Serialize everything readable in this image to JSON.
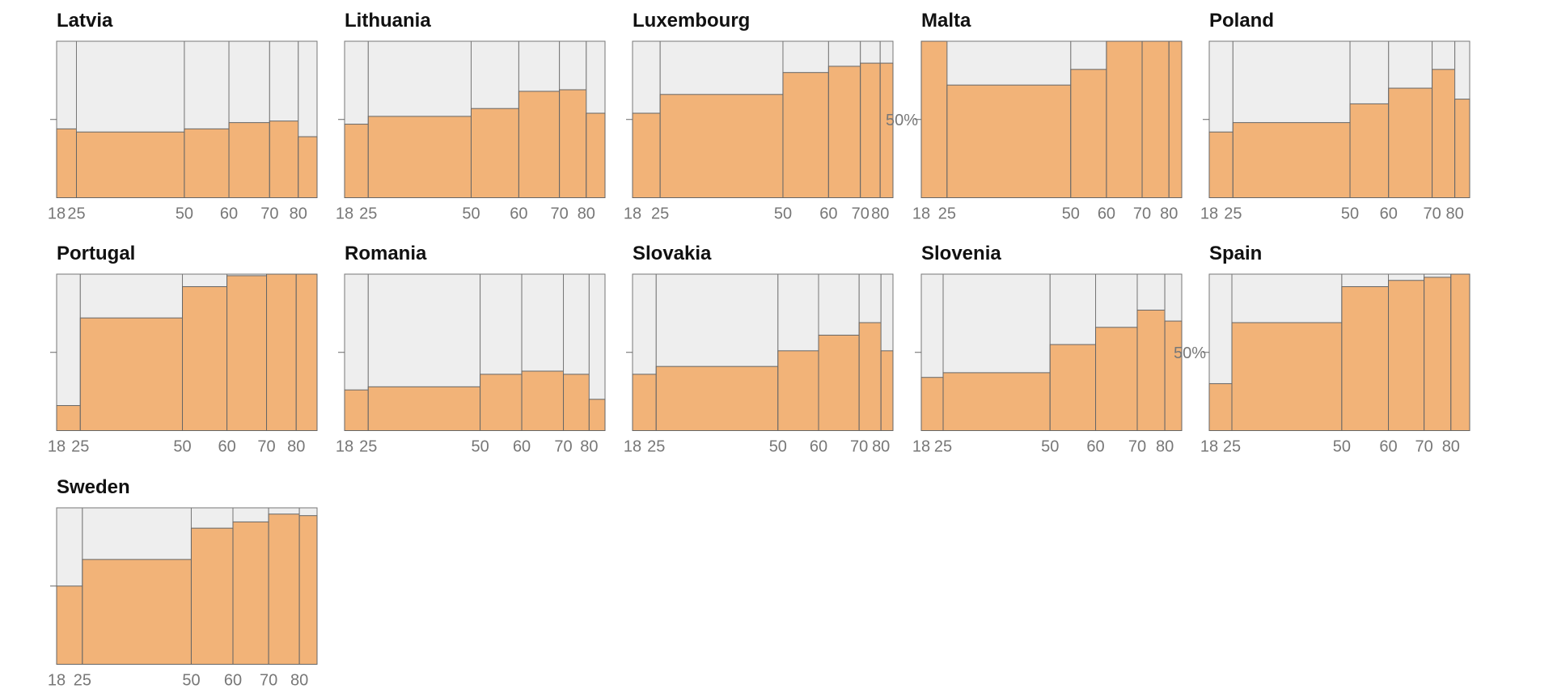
{
  "chart_data": [
    {
      "type": "mekko",
      "title": "Latvia",
      "categories": [
        18,
        25,
        50,
        60,
        70,
        80
      ],
      "widths": [
        7.6,
        41.4,
        17.1,
        15.6,
        11.0,
        7.2
      ],
      "values": [
        44,
        42,
        44,
        48,
        49,
        39
      ],
      "ylim": [
        0,
        100
      ],
      "yticks": [
        {
          "value": 50
        }
      ],
      "color": "#f2b378"
    },
    {
      "type": "mekko",
      "title": "Lithuania",
      "categories": [
        18,
        25,
        50,
        60,
        70,
        80
      ],
      "widths": [
        9.1,
        39.5,
        18.3,
        15.6,
        10.3,
        7.2
      ],
      "values": [
        47,
        52,
        57,
        68,
        69,
        54
      ],
      "ylim": [
        0,
        100
      ],
      "yticks": [
        {
          "value": 50
        }
      ],
      "color": "#f2b378"
    },
    {
      "type": "mekko",
      "title": "Luxembourg",
      "categories": [
        18,
        25,
        50,
        60,
        70,
        80
      ],
      "widths": [
        10.6,
        47.1,
        17.5,
        12.2,
        7.6,
        4.9
      ],
      "values": [
        54,
        66,
        80,
        84,
        86,
        86
      ],
      "ylim": [
        0,
        100
      ],
      "yticks": [
        {
          "value": 50
        }
      ],
      "color": "#f2b378"
    },
    {
      "type": "mekko",
      "title": "Malta",
      "categories": [
        18,
        25,
        50,
        60,
        70,
        80
      ],
      "widths": [
        9.9,
        47.5,
        13.7,
        13.7,
        10.3,
        4.9
      ],
      "values": [
        100,
        72,
        82,
        100,
        100,
        100
      ],
      "ylim": [
        0,
        100
      ],
      "yticks": [
        {
          "value": 50,
          "label": "50%"
        }
      ],
      "color": "#f2b378"
    },
    {
      "type": "mekko",
      "title": "Poland",
      "categories": [
        18,
        25,
        50,
        60,
        70,
        80
      ],
      "widths": [
        9.1,
        44.9,
        14.8,
        16.7,
        8.7,
        5.7
      ],
      "values": [
        42,
        48,
        60,
        70,
        82,
        63
      ],
      "ylim": [
        0,
        100
      ],
      "yticks": [
        {
          "value": 50
        }
      ],
      "color": "#f2b378"
    },
    {
      "type": "mekko",
      "title": "Portugal",
      "categories": [
        18,
        25,
        50,
        60,
        70,
        80
      ],
      "widths": [
        9.1,
        39.2,
        17.1,
        15.2,
        11.4,
        8.0
      ],
      "values": [
        16,
        72,
        92,
        99,
        100,
        100
      ],
      "ylim": [
        0,
        100
      ],
      "yticks": [
        {
          "value": 50
        }
      ],
      "color": "#f2b378"
    },
    {
      "type": "mekko",
      "title": "Romania",
      "categories": [
        18,
        25,
        50,
        60,
        70,
        80
      ],
      "widths": [
        9.1,
        43.0,
        16.0,
        16.0,
        9.9,
        6.1
      ],
      "values": [
        26,
        28,
        36,
        38,
        36,
        20
      ],
      "ylim": [
        0,
        100
      ],
      "yticks": [
        {
          "value": 50
        }
      ],
      "color": "#f2b378"
    },
    {
      "type": "mekko",
      "title": "Slovakia",
      "categories": [
        18,
        25,
        50,
        60,
        70,
        80
      ],
      "widths": [
        9.1,
        46.8,
        15.6,
        15.6,
        8.4,
        4.6
      ],
      "values": [
        36,
        41,
        51,
        61,
        69,
        51
      ],
      "ylim": [
        0,
        100
      ],
      "yticks": [
        {
          "value": 50
        }
      ],
      "color": "#f2b378"
    },
    {
      "type": "mekko",
      "title": "Slovenia",
      "categories": [
        18,
        25,
        50,
        60,
        70,
        80
      ],
      "widths": [
        8.4,
        41.1,
        17.5,
        16.0,
        10.6,
        6.5
      ],
      "values": [
        34,
        37,
        55,
        66,
        77,
        70
      ],
      "ylim": [
        0,
        100
      ],
      "yticks": [
        {
          "value": 50
        }
      ],
      "color": "#f2b378"
    },
    {
      "type": "mekko",
      "title": "Spain",
      "categories": [
        18,
        25,
        50,
        60,
        70,
        80
      ],
      "widths": [
        8.7,
        42.2,
        17.9,
        13.7,
        10.3,
        7.2
      ],
      "values": [
        30,
        69,
        92,
        96,
        98,
        100
      ],
      "ylim": [
        0,
        100
      ],
      "yticks": [
        {
          "value": 50,
          "label": "50%"
        }
      ],
      "color": "#f2b378"
    },
    {
      "type": "mekko",
      "title": "Sweden",
      "categories": [
        18,
        25,
        50,
        60,
        70,
        80
      ],
      "widths": [
        9.9,
        41.8,
        16.0,
        13.7,
        11.8,
        6.8
      ],
      "values": [
        50,
        67,
        87,
        91,
        96,
        95
      ],
      "ylim": [
        0,
        100
      ],
      "yticks": [
        {
          "value": 50
        }
      ],
      "color": "#f2b378"
    }
  ]
}
